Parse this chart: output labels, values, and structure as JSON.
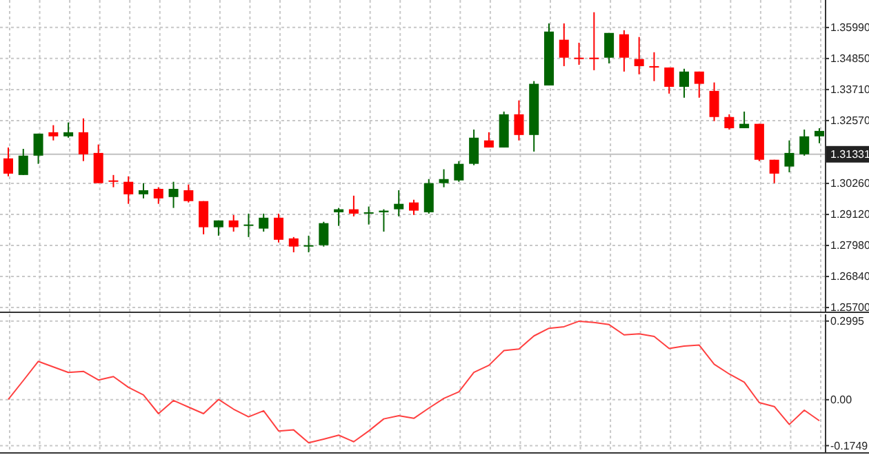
{
  "chart_data": [
    {
      "type": "candlestick",
      "categories": [
        null,
        null,
        null,
        null,
        null,
        null,
        null,
        null,
        null,
        null,
        null,
        null,
        null,
        null,
        null,
        null,
        null,
        null,
        null,
        null,
        null,
        null,
        null,
        null,
        null,
        null,
        null,
        null,
        null,
        null,
        null,
        null,
        null,
        null,
        null,
        null,
        null,
        null,
        null,
        null,
        null,
        null,
        null,
        null,
        null,
        null,
        null,
        null,
        null,
        null,
        null,
        null,
        null,
        null,
        null
      ],
      "ohlc": [
        [
          1.3118,
          1.3158,
          1.3052,
          1.3062
        ],
        [
          1.3057,
          1.3153,
          1.3057,
          1.3128
        ],
        [
          1.3128,
          1.3209,
          1.3098,
          1.3209
        ],
        [
          1.3214,
          1.324,
          1.3184,
          1.3199
        ],
        [
          1.3199,
          1.325,
          1.3194,
          1.3214
        ],
        [
          1.3214,
          1.3265,
          1.3108,
          1.3133
        ],
        [
          1.3138,
          1.3169,
          1.3027,
          1.3027
        ],
        [
          1.3037,
          1.3057,
          1.3012,
          1.3032
        ],
        [
          1.3032,
          1.3052,
          1.2951,
          1.2986
        ],
        [
          1.2986,
          1.3027,
          1.2971,
          1.3001
        ],
        [
          1.3006,
          1.3012,
          1.2951,
          1.2971
        ],
        [
          1.2976,
          1.3032,
          1.2936,
          1.3006
        ],
        [
          1.3001,
          1.3022,
          1.2956,
          1.2961
        ],
        [
          1.2961,
          1.2961,
          1.2839,
          1.2865
        ],
        [
          1.2865,
          1.289,
          1.2834,
          1.289
        ],
        [
          1.289,
          1.291,
          1.2849,
          1.2865
        ],
        [
          1.287,
          1.2915,
          1.2829,
          1.2875
        ],
        [
          1.286,
          1.2915,
          1.2849,
          1.29
        ],
        [
          1.29,
          1.2915,
          1.2809,
          1.2819
        ],
        [
          1.2824,
          1.2829,
          1.2773,
          1.2794
        ],
        [
          1.2794,
          1.2834,
          1.2773,
          1.2799
        ],
        [
          1.2799,
          1.2885,
          1.2794,
          1.288
        ],
        [
          1.292,
          1.2936,
          1.287,
          1.2931
        ],
        [
          1.2931,
          1.2981,
          1.2905,
          1.2915
        ],
        [
          1.2915,
          1.2941,
          1.2875,
          1.292
        ],
        [
          1.292,
          1.2931,
          1.2849,
          1.2926
        ],
        [
          1.2931,
          1.3001,
          1.2905,
          1.2951
        ],
        [
          1.2956,
          1.2966,
          1.291,
          1.2926
        ],
        [
          1.292,
          1.3042,
          1.2915,
          1.3027
        ],
        [
          1.3027,
          1.3078,
          1.3012,
          1.3042
        ],
        [
          1.3037,
          1.3108,
          1.3032,
          1.3098
        ],
        [
          1.3098,
          1.3224,
          1.3093,
          1.3194
        ],
        [
          1.3184,
          1.3214,
          1.3158,
          1.3158
        ],
        [
          1.3158,
          1.329,
          1.3158,
          1.328
        ],
        [
          1.328,
          1.3331,
          1.3184,
          1.3204
        ],
        [
          1.3204,
          1.3402,
          1.3143,
          1.3392
        ],
        [
          1.3386,
          1.3614,
          1.3386,
          1.3584
        ],
        [
          1.3554,
          1.3614,
          1.3457,
          1.3488
        ],
        [
          1.3488,
          1.3543,
          1.3462,
          1.3483
        ],
        [
          1.3488,
          1.3655,
          1.3442,
          1.3483
        ],
        [
          1.3488,
          1.3579,
          1.3467,
          1.3579
        ],
        [
          1.3574,
          1.3589,
          1.3437,
          1.3488
        ],
        [
          1.3483,
          1.3564,
          1.3427,
          1.3457
        ],
        [
          1.3457,
          1.3508,
          1.3402,
          1.3452
        ],
        [
          1.3452,
          1.3452,
          1.3356,
          1.3381
        ],
        [
          1.3381,
          1.3447,
          1.3341,
          1.3437
        ],
        [
          1.3437,
          1.3437,
          1.3341,
          1.3392
        ],
        [
          1.3366,
          1.3397,
          1.3255,
          1.327
        ],
        [
          1.327,
          1.328,
          1.3224,
          1.3229
        ],
        [
          1.3229,
          1.329,
          1.3229,
          1.3245
        ],
        [
          1.3245,
          1.3245,
          1.3108,
          1.3113
        ],
        [
          1.3113,
          1.3113,
          1.3027,
          1.3062
        ],
        [
          1.3088,
          1.3184,
          1.3067,
          1.3138
        ],
        [
          1.3133,
          1.3224,
          1.3128,
          1.3199
        ],
        [
          1.3199,
          1.3229,
          1.3174,
          1.3219
        ]
      ],
      "colors": [
        "#ff0000",
        "#006400",
        "#006400",
        "#ff0000",
        "#006400",
        "#ff0000",
        "#ff0000",
        "#ff0000",
        "#ff0000",
        "#006400",
        "#ff0000",
        "#006400",
        "#ff0000",
        "#ff0000",
        "#006400",
        "#ff0000",
        "#006400",
        "#006400",
        "#ff0000",
        "#ff0000",
        "#006400",
        "#006400",
        "#006400",
        "#ff0000",
        "#006400",
        "#006400",
        "#006400",
        "#ff0000",
        "#006400",
        "#006400",
        "#006400",
        "#006400",
        "#ff0000",
        "#006400",
        "#ff0000",
        "#006400",
        "#006400",
        "#ff0000",
        "#ff0000",
        "#ff0000",
        "#006400",
        "#ff0000",
        "#ff0000",
        "#ff0000",
        "#ff0000",
        "#006400",
        "#ff0000",
        "#ff0000",
        "#ff0000",
        "#006400",
        "#ff0000",
        "#ff0000",
        "#006400",
        "#006400",
        "#006400"
      ],
      "ylim": [
        1.2555,
        1.37
      ],
      "yticks": [
        {
          "value": 1.257,
          "label": "1.25700"
        },
        {
          "value": 1.2684,
          "label": "1.26840"
        },
        {
          "value": 1.2798,
          "label": "1.27980"
        },
        {
          "value": 1.2912,
          "label": "1.29120"
        },
        {
          "value": 1.3026,
          "label": "1.30260"
        },
        {
          "value": 1.3257,
          "label": "1.32570"
        },
        {
          "value": 1.3371,
          "label": "1.33710"
        },
        {
          "value": 1.3485,
          "label": "1.34850"
        },
        {
          "value": 1.3599,
          "label": "1.35990"
        }
      ],
      "ref_lines": [
        {
          "axis": "y",
          "value": 1.31331,
          "label": "1.31331",
          "color": "#c0c0c0"
        }
      ],
      "grid": true,
      "tick_labels": "y"
    },
    {
      "type": "line",
      "categories": [
        null,
        null,
        null,
        null,
        null,
        null,
        null,
        null,
        null,
        null,
        null,
        null,
        null,
        null,
        null,
        null,
        null,
        null,
        null,
        null,
        null,
        null,
        null,
        null,
        null,
        null,
        null,
        null,
        null,
        null,
        null,
        null,
        null,
        null,
        null,
        null,
        null,
        null,
        null,
        null,
        null,
        null,
        null,
        null,
        null,
        null,
        null,
        null,
        null,
        null,
        null,
        null,
        null,
        null,
        null
      ],
      "series": [
        {
          "color": "#ff4040",
          "values": [
            0.001,
            0.073,
            0.146,
            0.125,
            0.104,
            0.108,
            0.075,
            0.088,
            0.047,
            0.018,
            -0.053,
            -0.003,
            -0.028,
            -0.053,
            0.001,
            -0.036,
            -0.065,
            -0.042,
            -0.119,
            -0.115,
            -0.164,
            -0.15,
            -0.135,
            -0.16,
            -0.119,
            -0.073,
            -0.061,
            -0.071,
            -0.032,
            0.005,
            0.03,
            0.104,
            0.131,
            0.187,
            0.193,
            0.243,
            0.272,
            0.278,
            0.299,
            0.294,
            0.286,
            0.247,
            0.251,
            0.241,
            0.195,
            0.204,
            0.208,
            0.135,
            0.098,
            0.067,
            -0.011,
            -0.026,
            -0.094,
            -0.04,
            -0.08
          ]
        }
      ],
      "ylim": [
        -0.2,
        0.325
      ],
      "yticks": [
        -0.1749,
        {
          "value": 0,
          "label": "0.00"
        },
        0.2995
      ],
      "grid": true,
      "tick_labels": "y"
    }
  ]
}
